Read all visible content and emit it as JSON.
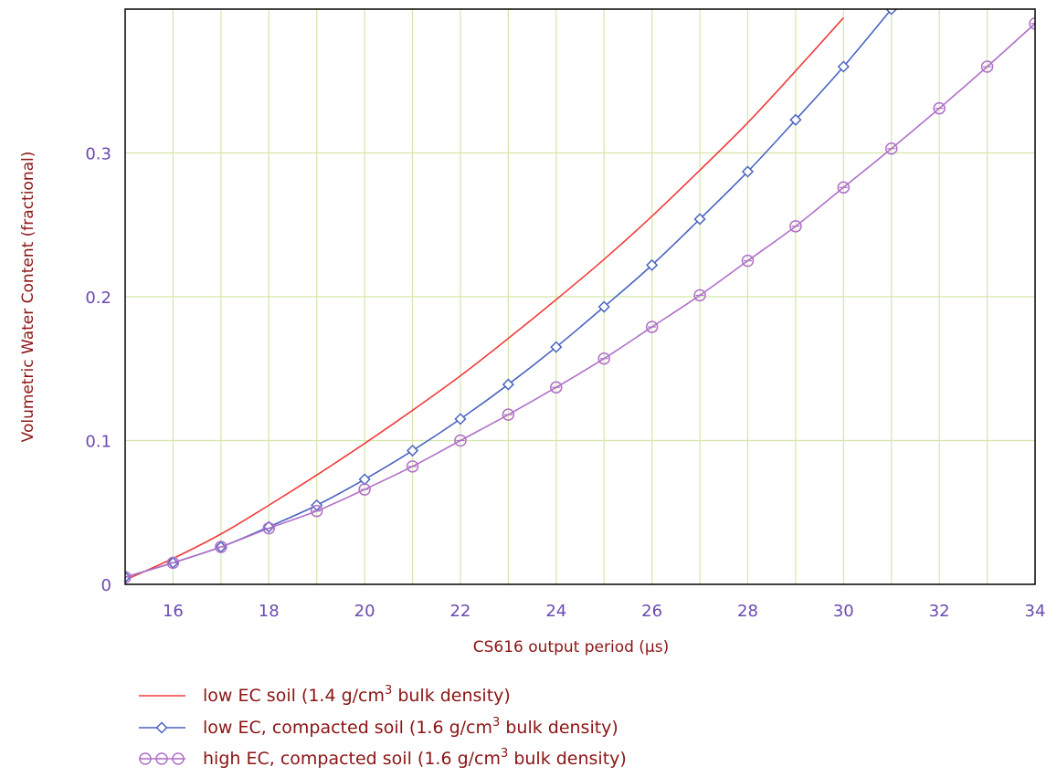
{
  "colors": {
    "background": "#ffffff",
    "grid": "#d4e6a8",
    "frame": "#000000",
    "tick_label": "#6a4bb0",
    "axis_title": "#8b1414",
    "legend_text": "#8b1414"
  },
  "chart_data": {
    "type": "line",
    "title": "",
    "xlabel": "CS616 output period (µs)",
    "ylabel": "Volumetric Water Content (fractional)",
    "xlim": [
      15,
      34
    ],
    "ylim": [
      0,
      0.4
    ],
    "grid": true,
    "legend_position": "bottom",
    "x_ticks": [
      16,
      18,
      20,
      22,
      24,
      26,
      28,
      30,
      32,
      34
    ],
    "x_tick_labels": [
      "16",
      "18",
      "20",
      "22",
      "24",
      "26",
      "28",
      "30",
      "32",
      "34"
    ],
    "y_ticks": [
      0,
      0.1,
      0.2,
      0.3
    ],
    "y_tick_labels": [
      "0",
      "0.1",
      "0.2",
      "0.3"
    ],
    "series": [
      {
        "name": "low EC soil (1.4 g/cm",
        "name_sup": "3",
        "name_after": " bulk density)",
        "color": "#f03c3c",
        "marker": "none",
        "x": [
          15,
          16,
          17,
          18,
          19,
          20,
          21,
          22,
          23,
          24,
          25,
          26,
          27,
          28,
          29,
          30
        ],
        "y": [
          0.003,
          0.018,
          0.035,
          0.055,
          0.076,
          0.098,
          0.121,
          0.145,
          0.171,
          0.198,
          0.226,
          0.256,
          0.288,
          0.321,
          0.357,
          0.394
        ]
      },
      {
        "name": "low EC, compacted soil (1.6 g/cm",
        "name_sup": "3",
        "name_after": " bulk density)",
        "color": "#4a64c0",
        "marker": "diamond",
        "x": [
          15,
          16,
          17,
          18,
          19,
          20,
          21,
          22,
          23,
          24,
          25,
          26,
          27,
          28,
          29,
          30,
          31
        ],
        "y": [
          0.005,
          0.015,
          0.026,
          0.04,
          0.055,
          0.073,
          0.093,
          0.115,
          0.139,
          0.165,
          0.193,
          0.222,
          0.254,
          0.287,
          0.323,
          0.36,
          0.4
        ]
      },
      {
        "name": "high EC, compacted soil (1.6 g/cm",
        "name_sup": "3",
        "name_after": " bulk density)",
        "color": "#b070c8",
        "marker": "circle",
        "x": [
          15,
          16,
          17,
          18,
          19,
          20,
          21,
          22,
          23,
          24,
          25,
          26,
          27,
          28,
          29,
          30,
          31,
          32,
          33,
          34
        ],
        "y": [
          0.005,
          0.015,
          0.026,
          0.039,
          0.051,
          0.066,
          0.082,
          0.1,
          0.118,
          0.137,
          0.157,
          0.179,
          0.201,
          0.225,
          0.249,
          0.276,
          0.303,
          0.331,
          0.36,
          0.39
        ]
      }
    ]
  }
}
